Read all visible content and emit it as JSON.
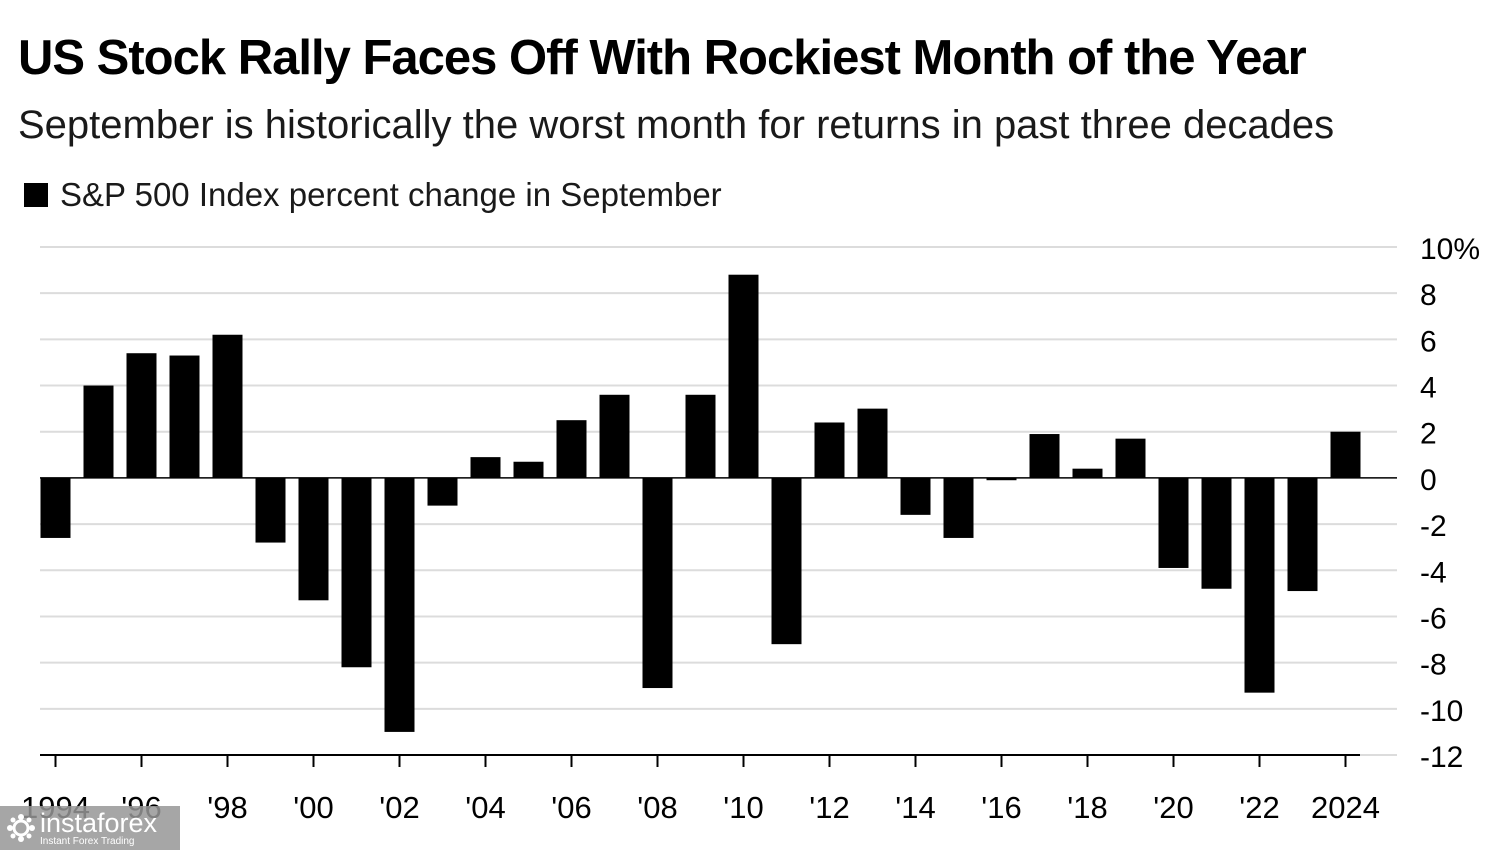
{
  "title": "US Stock Rally Faces Off With Rockiest Month of the Year",
  "subtitle": "September is historically the worst month for returns in past three decades",
  "watermark": {
    "name": "instaforex",
    "tagline": "Instant Forex Trading"
  },
  "chart_data": {
    "type": "bar",
    "series": [
      {
        "name": "S&P 500 Index percent change in September",
        "color": "#000000",
        "x": [
          1994,
          1995,
          1996,
          1997,
          1998,
          1999,
          2000,
          2001,
          2002,
          2003,
          2004,
          2005,
          2006,
          2007,
          2008,
          2009,
          2010,
          2011,
          2012,
          2013,
          2014,
          2015,
          2016,
          2017,
          2018,
          2019,
          2020,
          2021,
          2022,
          2023,
          2024
        ],
        "values": [
          -2.6,
          4.0,
          5.4,
          5.3,
          6.2,
          -2.8,
          -5.3,
          -8.2,
          -11.0,
          -1.2,
          0.9,
          0.7,
          2.5,
          3.6,
          -9.1,
          3.6,
          8.8,
          -7.2,
          2.4,
          3.0,
          -1.6,
          -2.6,
          -0.1,
          1.9,
          0.4,
          1.7,
          -3.9,
          -4.8,
          -9.3,
          -4.9,
          2.0
        ]
      }
    ],
    "x_tick_labels": [
      "1994",
      "'96",
      "'98",
      "'00",
      "'02",
      "'04",
      "'06",
      "'08",
      "'10",
      "'12",
      "'14",
      "'16",
      "'18",
      "'20",
      "'22",
      "2024"
    ],
    "x_tick_years": [
      1994,
      1996,
      1998,
      2000,
      2002,
      2004,
      2006,
      2008,
      2010,
      2012,
      2014,
      2016,
      2018,
      2020,
      2022,
      2024
    ],
    "y_ticks": [
      10,
      8,
      6,
      4,
      2,
      0,
      -2,
      -4,
      -6,
      -8,
      -10,
      -12
    ],
    "y_tick_labels": [
      "10%",
      "8",
      "6",
      "4",
      "2",
      "0",
      "-2",
      "-4",
      "-6",
      "-8",
      "-10",
      "-12"
    ],
    "ylim": [
      -12,
      10
    ],
    "y_axis_side": "right",
    "grid": true,
    "legend_position": "top-left"
  }
}
